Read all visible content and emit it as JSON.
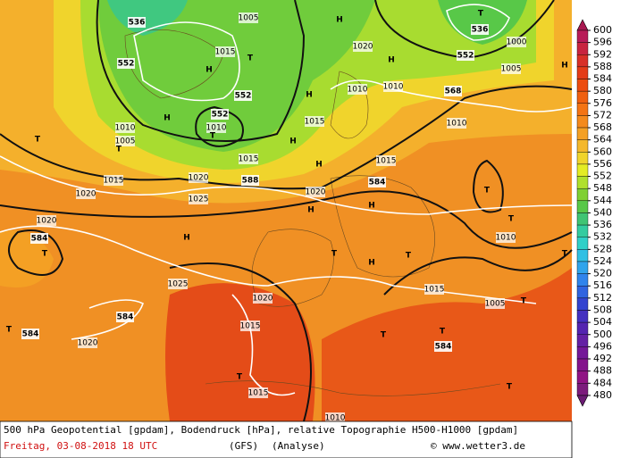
{
  "map": {
    "labels": [
      "536",
      "1005",
      "H",
      "T",
      "536",
      "1000",
      "1020",
      "552",
      "H",
      "1015",
      "T",
      "H",
      "552",
      "1005",
      "H",
      "1010",
      "1010",
      "552",
      "H",
      "568",
      "552",
      "1010",
      "T",
      "H",
      "1010",
      "1015",
      "1010",
      "T",
      "1005",
      "T",
      "H",
      "1015",
      "1015",
      "H",
      "1015",
      "1020",
      "588",
      "584",
      "T",
      "1020",
      "1025",
      "1020",
      "H",
      "H",
      "T",
      "1020",
      "584",
      "T",
      "H",
      "T",
      "H",
      "T",
      "1010",
      "T",
      "1025",
      "1015",
      "1020",
      "584",
      "T",
      "1005",
      "T",
      "584",
      "1015",
      "T",
      "T",
      "584",
      "1020",
      "T",
      "T",
      "1015",
      "1010"
    ]
  },
  "legend": {
    "levels": [
      600,
      596,
      592,
      588,
      584,
      580,
      576,
      572,
      568,
      564,
      560,
      556,
      552,
      548,
      544,
      540,
      536,
      532,
      528,
      524,
      520,
      516,
      512,
      508,
      504,
      500,
      496,
      492,
      488,
      484,
      480
    ],
    "colors": [
      "#b81c58",
      "#c82440",
      "#d83028",
      "#e43c18",
      "#ec4c10",
      "#f06010",
      "#f47414",
      "#f48a1c",
      "#f4a024",
      "#f4b82c",
      "#f0d42c",
      "#e4ec24",
      "#b0e02c",
      "#80d034",
      "#58c848",
      "#40c474",
      "#34cca0",
      "#30d0c8",
      "#30c0e4",
      "#30a4ec",
      "#3084ec",
      "#3064e0",
      "#3444d0",
      "#4430c0",
      "#5424b0",
      "#6420a4",
      "#741898",
      "#84148c",
      "#901484",
      "#7c1c7c"
    ],
    "top_color": "#a81850",
    "bottom_color": "#6c1c74"
  },
  "footer": {
    "line1": "500 hPa Geopotential [gpdam], Bodendruck [hPa], relative Topographie H500-H1000 [gpdam]",
    "date": "Freitag, 03-08-2018  18 UTC",
    "model": "(GFS)",
    "analysis": "(Analyse)",
    "credit": "© www.wetter3.de"
  }
}
